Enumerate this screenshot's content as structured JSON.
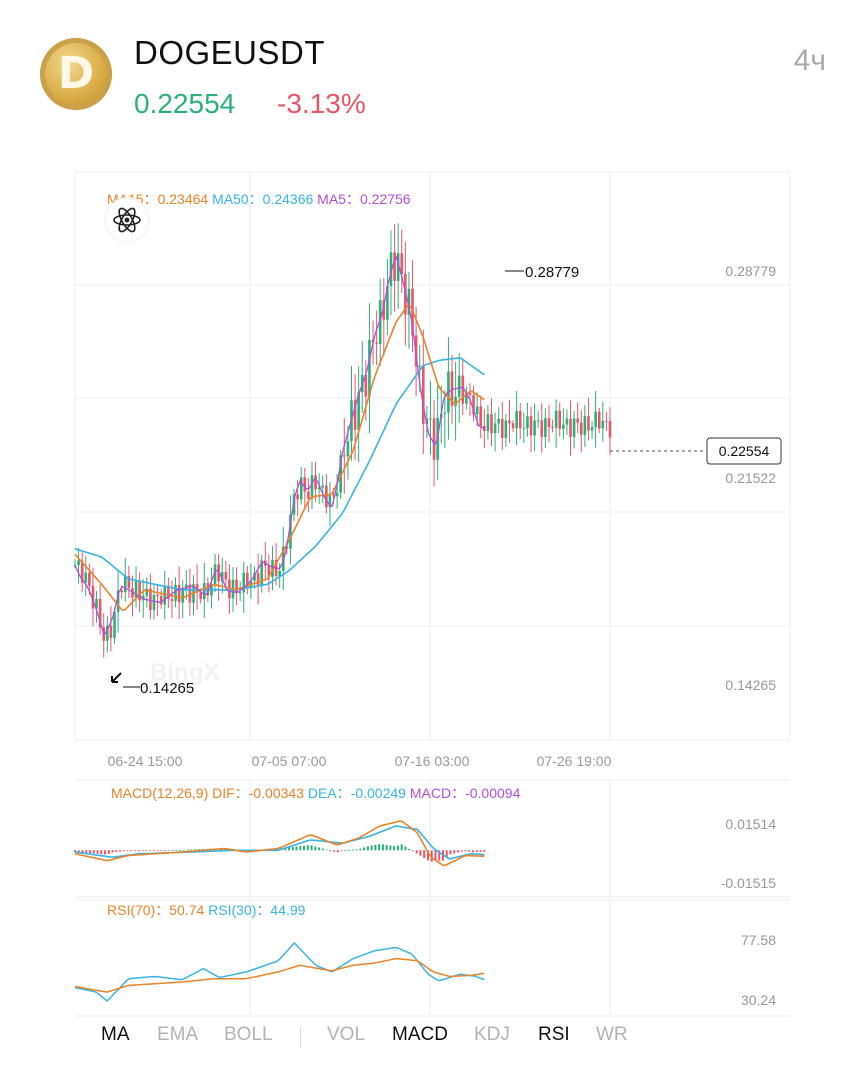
{
  "header": {
    "symbol": "DOGEUSDT",
    "price": "0.22554",
    "change": "-3.13%",
    "timeframe": "4ч",
    "logo_letter": "D",
    "logo_icon": "dogecoin-logo"
  },
  "colors": {
    "up": "#2bb07a",
    "down": "#e9566a",
    "ma15": "#e8832a",
    "ma50": "#38b3e5",
    "ma5": "#b14fd8",
    "dif": "#e8832a",
    "dea": "#38b3e5",
    "macd": "#b14fd8",
    "grid": "#eeeeee",
    "axis_text": "#999999"
  },
  "legends": {
    "ma": [
      {
        "label": "MA15：",
        "value": "0.23464",
        "color": "#e8832a"
      },
      {
        "label": "MA50：",
        "value": "0.24366",
        "color": "#38b3e5"
      },
      {
        "label": "MA5：",
        "value": "0.22756",
        "color": "#b14fd8"
      }
    ],
    "macd": [
      {
        "label": "MACD(12,26,9)",
        "value": "",
        "color": "#e8832a"
      },
      {
        "label": "DIF：",
        "value": "-0.00343",
        "color": "#e8832a"
      },
      {
        "label": "DEA：",
        "value": "-0.00249",
        "color": "#38b3e5"
      },
      {
        "label": "MACD：",
        "value": "-0.00094",
        "color": "#b14fd8"
      }
    ],
    "rsi": [
      {
        "label": "RSI(70)：",
        "value": "50.74",
        "color": "#e8832a"
      },
      {
        "label": "RSI(30)：",
        "value": "44.99",
        "color": "#38b3e5"
      }
    ]
  },
  "indicator_icon": "atom-icon",
  "watermark": "BingX",
  "chart_data": {
    "type": "candlestick",
    "price_axis": {
      "labels": [
        "0.28779",
        "0.21522",
        "0.14265"
      ],
      "high_marker": "0.28779",
      "low_marker": "0.14265",
      "last_price_tag": "0.22554",
      "ylim": [
        0.11,
        0.318
      ]
    },
    "x_ticks": [
      "06-24 15:00",
      "07-05 07:00",
      "07-16 03:00",
      "07-26 19:00"
    ],
    "price_path": [
      [
        0,
        0.174
      ],
      [
        0.01,
        0.171
      ],
      [
        0.025,
        0.167
      ],
      [
        0.04,
        0.158
      ],
      [
        0.055,
        0.147
      ],
      [
        0.07,
        0.153
      ],
      [
        0.085,
        0.166
      ],
      [
        0.1,
        0.166
      ],
      [
        0.13,
        0.163
      ],
      [
        0.16,
        0.161
      ],
      [
        0.19,
        0.164
      ],
      [
        0.22,
        0.165
      ],
      [
        0.245,
        0.162
      ],
      [
        0.265,
        0.174
      ],
      [
        0.285,
        0.166
      ],
      [
        0.305,
        0.165
      ],
      [
        0.33,
        0.168
      ],
      [
        0.35,
        0.174
      ],
      [
        0.37,
        0.172
      ],
      [
        0.385,
        0.173
      ],
      [
        0.395,
        0.181
      ],
      [
        0.41,
        0.2
      ],
      [
        0.42,
        0.205
      ],
      [
        0.435,
        0.2
      ],
      [
        0.45,
        0.205
      ],
      [
        0.465,
        0.199
      ],
      [
        0.48,
        0.196
      ],
      [
        0.49,
        0.205
      ],
      [
        0.5,
        0.216
      ],
      [
        0.515,
        0.225
      ],
      [
        0.53,
        0.235
      ],
      [
        0.545,
        0.244
      ],
      [
        0.56,
        0.259
      ],
      [
        0.575,
        0.268
      ],
      [
        0.585,
        0.278
      ],
      [
        0.6,
        0.287
      ],
      [
        0.615,
        0.275
      ],
      [
        0.63,
        0.262
      ],
      [
        0.645,
        0.24
      ],
      [
        0.66,
        0.224
      ],
      [
        0.675,
        0.218
      ],
      [
        0.69,
        0.236
      ],
      [
        0.705,
        0.237
      ],
      [
        0.725,
        0.238
      ],
      [
        0.74,
        0.234
      ],
      [
        0.755,
        0.226
      ],
      [
        0.765,
        0.2255
      ]
    ],
    "ma15_path": [
      [
        0,
        0.178
      ],
      [
        0.05,
        0.167
      ],
      [
        0.09,
        0.157
      ],
      [
        0.13,
        0.165
      ],
      [
        0.2,
        0.162
      ],
      [
        0.26,
        0.167
      ],
      [
        0.3,
        0.165
      ],
      [
        0.36,
        0.169
      ],
      [
        0.4,
        0.183
      ],
      [
        0.44,
        0.199
      ],
      [
        0.48,
        0.2
      ],
      [
        0.52,
        0.216
      ],
      [
        0.56,
        0.243
      ],
      [
        0.6,
        0.263
      ],
      [
        0.625,
        0.27
      ],
      [
        0.65,
        0.258
      ],
      [
        0.68,
        0.239
      ],
      [
        0.71,
        0.233
      ],
      [
        0.74,
        0.238
      ],
      [
        0.765,
        0.2346
      ]
    ],
    "ma50_path": [
      [
        0,
        0.18
      ],
      [
        0.05,
        0.177
      ],
      [
        0.1,
        0.169
      ],
      [
        0.2,
        0.165
      ],
      [
        0.3,
        0.165
      ],
      [
        0.36,
        0.167
      ],
      [
        0.4,
        0.172
      ],
      [
        0.45,
        0.181
      ],
      [
        0.5,
        0.193
      ],
      [
        0.55,
        0.212
      ],
      [
        0.6,
        0.233
      ],
      [
        0.65,
        0.247
      ],
      [
        0.68,
        0.249
      ],
      [
        0.72,
        0.25
      ],
      [
        0.765,
        0.2437
      ]
    ],
    "macd": {
      "axis_labels": [
        "0.01514",
        "-0.01515"
      ],
      "ylim": [
        -0.024,
        0.022
      ],
      "dif_path": [
        [
          0,
          -0.002
        ],
        [
          0.06,
          -0.006
        ],
        [
          0.1,
          -0.003
        ],
        [
          0.2,
          -0.001
        ],
        [
          0.28,
          0.001
        ],
        [
          0.32,
          -0.001
        ],
        [
          0.38,
          0.001
        ],
        [
          0.44,
          0.009
        ],
        [
          0.49,
          0.003
        ],
        [
          0.53,
          0.007
        ],
        [
          0.57,
          0.014
        ],
        [
          0.61,
          0.017
        ],
        [
          0.64,
          0.01
        ],
        [
          0.665,
          -0.004
        ],
        [
          0.69,
          -0.009
        ],
        [
          0.73,
          -0.003
        ],
        [
          0.765,
          -0.00343
        ]
      ],
      "dea_path": [
        [
          0,
          -0.001
        ],
        [
          0.07,
          -0.004
        ],
        [
          0.12,
          -0.002
        ],
        [
          0.22,
          -0.001
        ],
        [
          0.3,
          0
        ],
        [
          0.38,
          0
        ],
        [
          0.44,
          0.006
        ],
        [
          0.5,
          0.004
        ],
        [
          0.55,
          0.008
        ],
        [
          0.6,
          0.014
        ],
        [
          0.64,
          0.012
        ],
        [
          0.67,
          0.001
        ],
        [
          0.7,
          -0.005
        ],
        [
          0.74,
          -0.002
        ],
        [
          0.765,
          -0.00249
        ]
      ]
    },
    "rsi": {
      "axis_labels": [
        "77.58",
        "30.24"
      ],
      "ylim": [
        18,
        94
      ],
      "rsi70_path": [
        [
          0,
          39
        ],
        [
          0.06,
          34
        ],
        [
          0.1,
          40
        ],
        [
          0.2,
          43
        ],
        [
          0.26,
          46
        ],
        [
          0.32,
          46
        ],
        [
          0.38,
          52
        ],
        [
          0.42,
          58
        ],
        [
          0.48,
          53
        ],
        [
          0.52,
          58
        ],
        [
          0.56,
          60
        ],
        [
          0.6,
          64
        ],
        [
          0.64,
          62
        ],
        [
          0.67,
          52
        ],
        [
          0.7,
          48
        ],
        [
          0.74,
          49
        ],
        [
          0.765,
          50.74
        ]
      ],
      "rsi30_path": [
        [
          0,
          38
        ],
        [
          0.04,
          34
        ],
        [
          0.06,
          26
        ],
        [
          0.1,
          46
        ],
        [
          0.15,
          48
        ],
        [
          0.2,
          45
        ],
        [
          0.24,
          55
        ],
        [
          0.27,
          47
        ],
        [
          0.32,
          52
        ],
        [
          0.38,
          62
        ],
        [
          0.41,
          78
        ],
        [
          0.45,
          58
        ],
        [
          0.48,
          52
        ],
        [
          0.52,
          64
        ],
        [
          0.56,
          71
        ],
        [
          0.6,
          74
        ],
        [
          0.63,
          68
        ],
        [
          0.66,
          50
        ],
        [
          0.68,
          44
        ],
        [
          0.72,
          50
        ],
        [
          0.75,
          48
        ],
        [
          0.765,
          44.99
        ]
      ]
    }
  },
  "tabs": [
    {
      "label": "MA",
      "active": true
    },
    {
      "label": "EMA",
      "active": false
    },
    {
      "label": "BOLL",
      "active": false
    },
    {
      "label": "VOL",
      "active": false
    },
    {
      "label": "MACD",
      "active": true
    },
    {
      "label": "KDJ",
      "active": false
    },
    {
      "label": "RSI",
      "active": true
    },
    {
      "label": "WR",
      "active": false
    }
  ]
}
